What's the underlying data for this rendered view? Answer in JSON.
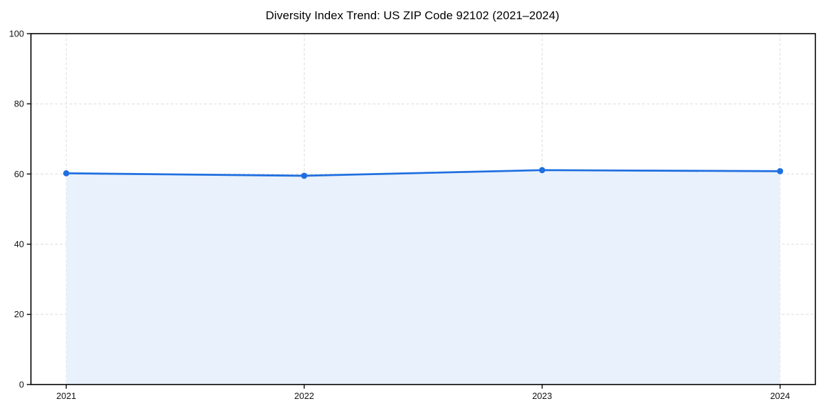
{
  "chart_data": {
    "type": "line",
    "title": "Diversity Index Trend: US ZIP Code 92102 (2021–2024)",
    "categories": [
      "2021",
      "2022",
      "2023",
      "2024"
    ],
    "series": [
      {
        "name": "Diversity Index",
        "values": [
          60.2,
          59.5,
          61.1,
          60.8
        ]
      }
    ],
    "xlabel": "",
    "ylabel": "",
    "ylim": [
      0,
      100
    ],
    "y_ticks": [
      0,
      20,
      40,
      60,
      80,
      100
    ],
    "grid": true,
    "grid_style": "dashed",
    "legend_position": "none",
    "area_fill": true,
    "markers": true,
    "colors": {
      "line": "#1f6fe0",
      "marker": "#1f6fe0",
      "area_fill": "#e9f1fc",
      "grid": "#dcdcdc",
      "spine": "#000000",
      "tick_text": "#111111",
      "background": "#ffffff"
    }
  }
}
